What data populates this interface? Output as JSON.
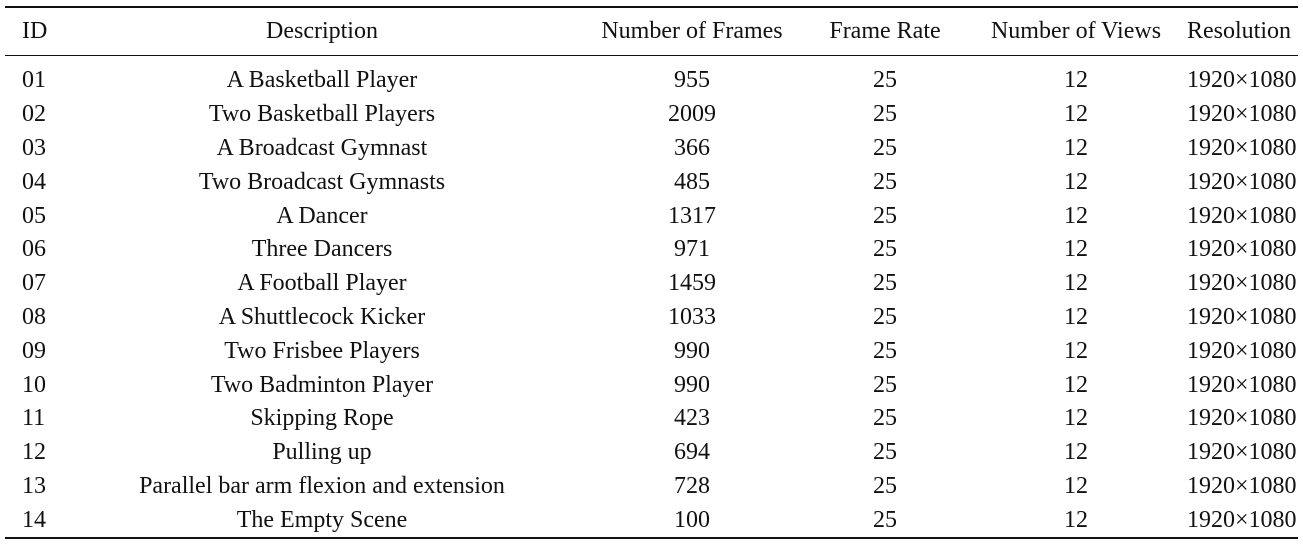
{
  "table": {
    "headers": [
      "ID",
      "Description",
      "Number of Frames",
      "Frame Rate",
      "Number of Views",
      "Resolution"
    ],
    "rows": [
      {
        "id": "01",
        "description": "A Basketball Player",
        "frames": "955",
        "frame_rate": "25",
        "views": "12",
        "resolution": "1920×1080"
      },
      {
        "id": "02",
        "description": "Two Basketball Players",
        "frames": "2009",
        "frame_rate": "25",
        "views": "12",
        "resolution": "1920×1080"
      },
      {
        "id": "03",
        "description": "A Broadcast Gymnast",
        "frames": "366",
        "frame_rate": "25",
        "views": "12",
        "resolution": "1920×1080"
      },
      {
        "id": "04",
        "description": "Two Broadcast Gymnasts",
        "frames": "485",
        "frame_rate": "25",
        "views": "12",
        "resolution": "1920×1080"
      },
      {
        "id": "05",
        "description": "A Dancer",
        "frames": "1317",
        "frame_rate": "25",
        "views": "12",
        "resolution": "1920×1080"
      },
      {
        "id": "06",
        "description": "Three Dancers",
        "frames": "971",
        "frame_rate": "25",
        "views": "12",
        "resolution": "1920×1080"
      },
      {
        "id": "07",
        "description": "A Football Player",
        "frames": "1459",
        "frame_rate": "25",
        "views": "12",
        "resolution": "1920×1080"
      },
      {
        "id": "08",
        "description": "A Shuttlecock Kicker",
        "frames": "1033",
        "frame_rate": "25",
        "views": "12",
        "resolution": "1920×1080"
      },
      {
        "id": "09",
        "description": "Two Frisbee Players",
        "frames": "990",
        "frame_rate": "25",
        "views": "12",
        "resolution": "1920×1080"
      },
      {
        "id": "10",
        "description": "Two Badminton Player",
        "frames": "990",
        "frame_rate": "25",
        "views": "12",
        "resolution": "1920×1080"
      },
      {
        "id": "11",
        "description": "Skipping Rope",
        "frames": "423",
        "frame_rate": "25",
        "views": "12",
        "resolution": "1920×1080"
      },
      {
        "id": "12",
        "description": "Pulling up",
        "frames": "694",
        "frame_rate": "25",
        "views": "12",
        "resolution": "1920×1080"
      },
      {
        "id": "13",
        "description": "Parallel bar arm flexion and extension",
        "frames": "728",
        "frame_rate": "25",
        "views": "12",
        "resolution": "1920×1080"
      },
      {
        "id": "14",
        "description": "The Empty Scene",
        "frames": "100",
        "frame_rate": "25",
        "views": "12",
        "resolution": "1920×1080"
      }
    ]
  }
}
